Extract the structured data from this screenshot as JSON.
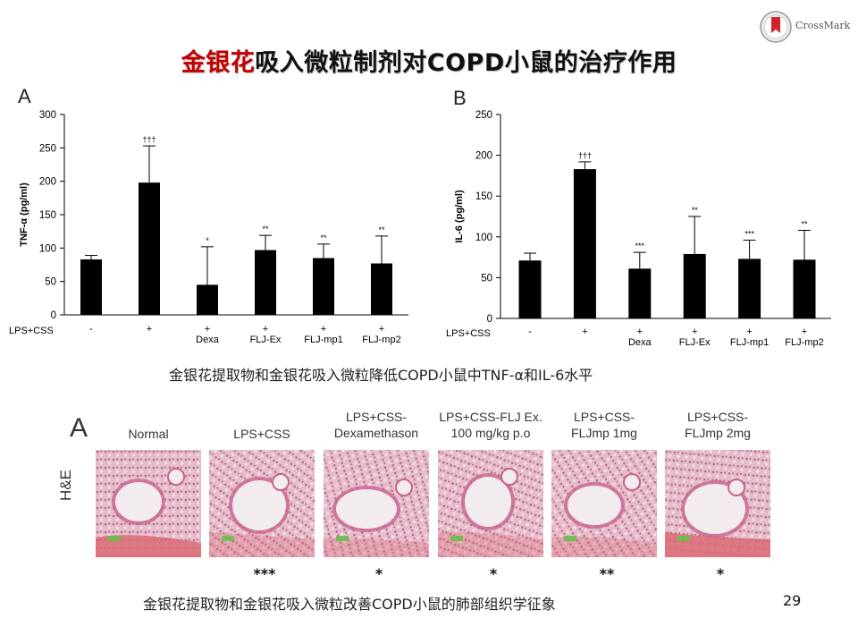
{
  "title_prefix": "金银花",
  "title_rest": "吸入微粒制剂对COPD小鼠的治疗作用",
  "crossmark_text": "CrossMark",
  "caption_top": "金银花提取物和金银花吸入微粒降低COPD小鼠中TNF-α和IL-6水平",
  "caption_bottom": "金银花提取物和金银花吸入微粒改善COPD小鼠的肺部组织学征象",
  "page_number": "29",
  "colors": {
    "accent": "#c00000",
    "bar": "#000000"
  },
  "chart_data": [
    {
      "type": "bar",
      "panel": "A",
      "ylabel": "TNF-α (pg/ml)",
      "ylim": [
        0,
        300
      ],
      "yticks": [
        0,
        50,
        100,
        150,
        200,
        250,
        300
      ],
      "row_label": "LPS+CSS",
      "lps_css": [
        "-",
        "+",
        "+",
        "+",
        "+",
        "+"
      ],
      "categories": [
        "",
        "",
        "Dexa",
        "FLJ-Ex",
        "FLJ-mp1",
        "FLJ-mp2"
      ],
      "values": [
        83,
        198,
        45,
        97,
        85,
        77
      ],
      "errors": [
        6,
        55,
        57,
        22,
        21,
        41
      ],
      "significance": [
        "",
        "†††",
        "*",
        "**",
        "**",
        "**"
      ]
    },
    {
      "type": "bar",
      "panel": "B",
      "ylabel": "IL-6 (pg/ml)",
      "ylim": [
        0,
        250
      ],
      "yticks": [
        0,
        50,
        100,
        150,
        200,
        250
      ],
      "row_label": "LPS+CSS",
      "lps_css": [
        "-",
        "+",
        "+",
        "+",
        "+",
        "+"
      ],
      "categories": [
        "",
        "",
        "Dexa",
        "FLJ-Ex",
        "FLJ-mp1",
        "FLJ-mp2"
      ],
      "values": [
        71,
        183,
        61,
        79,
        73,
        72
      ],
      "errors": [
        9,
        9,
        20,
        46,
        23,
        36
      ],
      "significance": [
        "",
        "†††",
        "***",
        "**",
        "***",
        "**"
      ]
    }
  ],
  "histology": {
    "panel_letter": "A",
    "stain_label": "H&E",
    "groups": [
      {
        "label": "Normal",
        "significance": ""
      },
      {
        "label": "LPS+CSS",
        "significance": "***"
      },
      {
        "label": "LPS+CSS-\nDexamethason",
        "significance": "*"
      },
      {
        "label": "LPS+CSS-FLJ Ex.\n100 mg/kg p.o",
        "significance": "*"
      },
      {
        "label": "LPS+CSS-\nFLJmp 1mg",
        "significance": "**"
      },
      {
        "label": "LPS+CSS-\nFLJmp 2mg",
        "significance": "*"
      }
    ]
  }
}
